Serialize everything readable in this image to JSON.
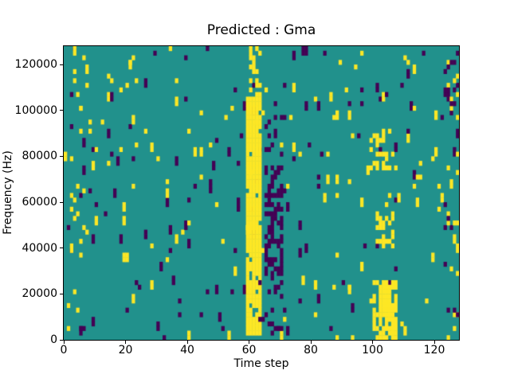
{
  "chart_data": {
    "type": "heatmap",
    "title": "Predicted : Gma",
    "xlabel": "Time step",
    "ylabel": "Frequency (Hz)",
    "xlim": [
      0,
      128
    ],
    "ylim": [
      0,
      128000
    ],
    "grid": false,
    "legend": "none",
    "x_ticks": [
      {
        "value": 0,
        "label": "0"
      },
      {
        "value": 20,
        "label": "20"
      },
      {
        "value": 40,
        "label": "40"
      },
      {
        "value": 60,
        "label": "60"
      },
      {
        "value": 80,
        "label": "80"
      },
      {
        "value": 100,
        "label": "100"
      },
      {
        "value": 120,
        "label": "120"
      }
    ],
    "y_ticks": [
      {
        "value": 0,
        "label": "0"
      },
      {
        "value": 20000,
        "label": "20000"
      },
      {
        "value": 40000,
        "label": "40000"
      },
      {
        "value": 60000,
        "label": "60000"
      },
      {
        "value": 80000,
        "label": "80000"
      },
      {
        "value": 100000,
        "label": "100000"
      },
      {
        "value": 120000,
        "label": "120000"
      }
    ],
    "colors": {
      "background": "#21918c",
      "low": "#440154",
      "high": "#fde725"
    },
    "grid_cells": {
      "cols": 128,
      "rows": 64
    },
    "noise": {
      "seed": 1337,
      "high_density": 0.015,
      "low_density": 0.015,
      "tall_prob": 0.35
    },
    "features": [
      {
        "name": "main-yellow-band",
        "x0": 59,
        "x1": 64,
        "y0": 1000,
        "y1": 106000,
        "value": "high",
        "density": 0.92
      },
      {
        "name": "yellow-band-upper",
        "x0": 60,
        "x1": 64,
        "y0": 106000,
        "y1": 128000,
        "value": "high",
        "density": 0.4
      },
      {
        "name": "dark-cluster-mid",
        "x0": 65,
        "x1": 71,
        "y0": 28000,
        "y1": 76000,
        "value": "low",
        "density": 0.55
      },
      {
        "name": "dark-scatter-below",
        "x0": 63,
        "x1": 72,
        "y0": 2000,
        "y1": 28000,
        "value": "low",
        "density": 0.16
      },
      {
        "name": "dark-scatter-above",
        "x0": 65,
        "x1": 70,
        "y0": 76000,
        "y1": 112000,
        "value": "low",
        "density": 0.12
      },
      {
        "name": "yellow-patch-lowfreq",
        "x0": 100,
        "x1": 108,
        "y0": 0,
        "y1": 26000,
        "value": "high",
        "density": 0.7
      },
      {
        "name": "yellow-patch-midfreq",
        "x0": 101,
        "x1": 107,
        "y0": 40000,
        "y1": 56000,
        "value": "high",
        "density": 0.45
      },
      {
        "name": "yellow-patch-highfreq",
        "x0": 99,
        "x1": 107,
        "y0": 74000,
        "y1": 92000,
        "value": "high",
        "density": 0.22
      },
      {
        "name": "right-edge-yellow",
        "x0": 124,
        "x1": 128,
        "y0": 0,
        "y1": 128000,
        "value": "high",
        "density": 0.1
      },
      {
        "name": "right-edge-dark",
        "x0": 122,
        "x1": 128,
        "y0": 0,
        "y1": 128000,
        "value": "low",
        "density": 0.06
      },
      {
        "name": "left-edge-scatter",
        "x0": 1,
        "x1": 8,
        "y0": 0,
        "y1": 128000,
        "value": "high",
        "density": 0.06
      }
    ]
  }
}
